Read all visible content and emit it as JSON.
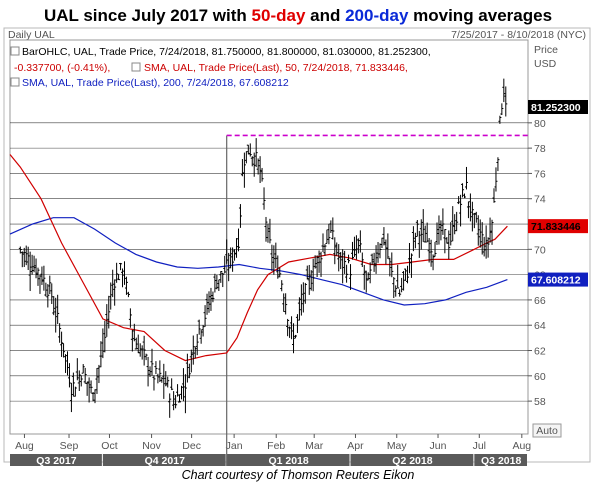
{
  "header": {
    "title_parts": [
      "UAL",
      " since July 2017 with ",
      "50-day",
      " and ",
      "200-day",
      " moving averages"
    ]
  },
  "credit": "Chart courtesy of Thomson Reuters Eikon",
  "chart_data": {
    "type": "ohlc",
    "frame_label": "Daily UAL",
    "date_range": "7/25/2017 - 8/10/2018 (NYC)",
    "axis_unit_label": [
      "Price",
      "USD"
    ],
    "legend": [
      {
        "text": "BarOHLC, UAL, Trade Price, 7/24/2018, 81.750000, 81.800000, 81.030000, 81.252300,",
        "color": "#000000"
      },
      {
        "text": "-0.337700, (-0.41%),",
        "color": "#cc0000"
      },
      {
        "text": "SMA, UAL, Trade Price(Last), 50, 7/24/2018, 71.833446,",
        "color": "#cc0000"
      },
      {
        "text": "SMA, UAL, Trade Price(Last), 200, 7/24/2018, 67.608212",
        "color": "#1020c0"
      }
    ],
    "ylim": [
      55.4,
      85.6
    ],
    "y_ticks": [
      58,
      60,
      62,
      64,
      66,
      68,
      70,
      72,
      74,
      76,
      78,
      80
    ],
    "grid": true,
    "x_ticks": [
      {
        "label": "Aug",
        "t": 0.1
      },
      {
        "label": "Sep",
        "t": 1.18
      },
      {
        "label": "Oct",
        "t": 2.16
      },
      {
        "label": "Nov",
        "t": 3.18
      },
      {
        "label": "Dec",
        "t": 4.15
      },
      {
        "label": "Jan",
        "t": 5.18
      },
      {
        "label": "Feb",
        "t": 6.2
      },
      {
        "label": "Mar",
        "t": 7.12
      },
      {
        "label": "Apr",
        "t": 8.12
      },
      {
        "label": "May",
        "t": 9.12
      },
      {
        "label": "Jun",
        "t": 10.12
      },
      {
        "label": "Jul",
        "t": 11.12
      },
      {
        "label": "Aug",
        "t": 12.15
      }
    ],
    "quarters": [
      {
        "label": "Q3 2017",
        "t0": -0.25,
        "t1": 2.0
      },
      {
        "label": "Q4 2017",
        "t0": 2.0,
        "t1": 5.0
      },
      {
        "label": "Q1 2018",
        "t0": 5.0,
        "t1": 8.0
      },
      {
        "label": "Q2 2018",
        "t0": 8.0,
        "t1": 11.0
      },
      {
        "label": "Q3 2018",
        "t0": 11.0,
        "t1": 12.3
      }
    ],
    "price_anchors": [
      [
        0.0,
        70.0
      ],
      [
        0.25,
        69.0
      ],
      [
        0.5,
        68.0
      ],
      [
        0.75,
        66.5
      ],
      [
        1.0,
        63.0
      ],
      [
        1.25,
        59.0
      ],
      [
        1.5,
        60.5
      ],
      [
        1.75,
        58.5
      ],
      [
        2.0,
        62.0
      ],
      [
        2.25,
        67.5
      ],
      [
        2.5,
        68.5
      ],
      [
        2.75,
        63.0
      ],
      [
        3.0,
        61.5
      ],
      [
        3.25,
        60.0
      ],
      [
        3.5,
        59.5
      ],
      [
        3.75,
        58.0
      ],
      [
        4.0,
        59.5
      ],
      [
        4.25,
        63.0
      ],
      [
        4.5,
        65.0
      ],
      [
        4.75,
        67.5
      ],
      [
        5.0,
        68.5
      ],
      [
        5.15,
        69.5
      ],
      [
        5.3,
        71.0
      ],
      [
        5.4,
        77.0
      ],
      [
        5.55,
        78.0
      ],
      [
        5.8,
        76.5
      ],
      [
        6.0,
        71.0
      ],
      [
        6.1,
        69.5
      ],
      [
        6.3,
        68.0
      ],
      [
        6.45,
        65.5
      ],
      [
        6.6,
        62.5
      ],
      [
        6.8,
        65.5
      ],
      [
        7.0,
        67.5
      ],
      [
        7.25,
        69.5
      ],
      [
        7.5,
        71.5
      ],
      [
        7.75,
        69.0
      ],
      [
        8.0,
        68.5
      ],
      [
        8.2,
        70.5
      ],
      [
        8.4,
        67.0
      ],
      [
        8.6,
        69.5
      ],
      [
        8.8,
        71.0
      ],
      [
        9.0,
        68.0
      ],
      [
        9.2,
        66.5
      ],
      [
        9.4,
        68.5
      ],
      [
        9.6,
        71.5
      ],
      [
        9.8,
        71.0
      ],
      [
        10.0,
        70.0
      ],
      [
        10.2,
        71.5
      ],
      [
        10.4,
        70.5
      ],
      [
        10.6,
        73.0
      ],
      [
        10.8,
        75.0
      ],
      [
        10.95,
        72.5
      ],
      [
        11.1,
        71.5
      ],
      [
        11.3,
        70.0
      ],
      [
        11.45,
        72.5
      ],
      [
        11.6,
        79.0
      ],
      [
        11.7,
        83.0
      ],
      [
        11.8,
        81.25
      ]
    ],
    "sma50": [
      [
        -0.25,
        77.5
      ],
      [
        0.0,
        76.5
      ],
      [
        0.5,
        74.0
      ],
      [
        1.0,
        70.5
      ],
      [
        1.5,
        67.5
      ],
      [
        2.0,
        64.5
      ],
      [
        2.5,
        63.8
      ],
      [
        3.0,
        63.5
      ],
      [
        3.5,
        62.0
      ],
      [
        4.0,
        61.2
      ],
      [
        4.5,
        61.6
      ],
      [
        5.0,
        61.8
      ],
      [
        5.25,
        63.0
      ],
      [
        5.5,
        65.0
      ],
      [
        5.75,
        66.8
      ],
      [
        6.0,
        68.0
      ],
      [
        6.5,
        69.0
      ],
      [
        7.0,
        69.3
      ],
      [
        7.5,
        69.6
      ],
      [
        8.0,
        69.3
      ],
      [
        8.5,
        68.8
      ],
      [
        9.0,
        68.8
      ],
      [
        9.5,
        69.0
      ],
      [
        10.0,
        69.2
      ],
      [
        10.5,
        69.2
      ],
      [
        11.0,
        70.0
      ],
      [
        11.3,
        70.5
      ],
      [
        11.5,
        70.8
      ],
      [
        11.8,
        71.83
      ]
    ],
    "sma200": [
      [
        -0.25,
        71.2
      ],
      [
        0.3,
        72.0
      ],
      [
        0.8,
        72.5
      ],
      [
        1.3,
        72.5
      ],
      [
        1.8,
        71.6
      ],
      [
        2.3,
        70.5
      ],
      [
        2.8,
        69.6
      ],
      [
        3.3,
        69.0
      ],
      [
        3.8,
        68.6
      ],
      [
        4.3,
        68.5
      ],
      [
        4.8,
        68.6
      ],
      [
        5.3,
        68.8
      ],
      [
        5.8,
        68.5
      ],
      [
        6.3,
        68.3
      ],
      [
        6.8,
        68.0
      ],
      [
        7.3,
        67.6
      ],
      [
        7.8,
        67.2
      ],
      [
        8.3,
        66.6
      ],
      [
        8.8,
        66.0
      ],
      [
        9.3,
        65.6
      ],
      [
        9.8,
        65.7
      ],
      [
        10.3,
        66.0
      ],
      [
        10.8,
        66.6
      ],
      [
        11.3,
        67.0
      ],
      [
        11.8,
        67.61
      ]
    ],
    "reference_line": {
      "value": 79.0,
      "t0": 5.0,
      "color": "#cc00cc",
      "style": "dashed"
    },
    "event_marker_t": 5.0,
    "last_price": {
      "label": "81.252300",
      "value": 81.2523
    },
    "sma50_value": {
      "label": "71.833446",
      "value": 71.833446,
      "color": "#e00000"
    },
    "sma200_value": {
      "label": "67.608212",
      "value": 67.608212,
      "color": "#1020c0"
    },
    "auto_label": "Auto"
  }
}
